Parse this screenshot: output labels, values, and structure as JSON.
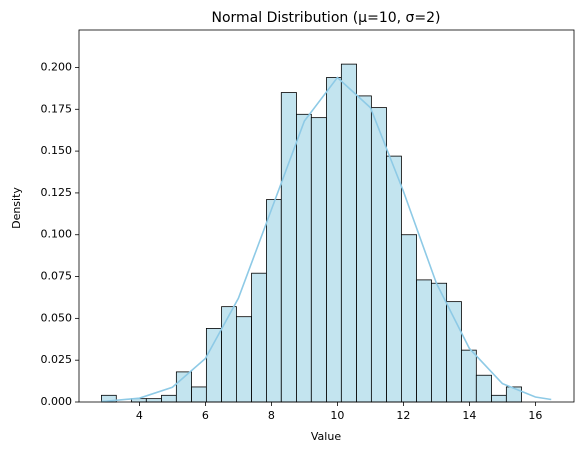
{
  "chart_data": {
    "type": "histogram",
    "title": "Normal Distribution (μ=10, σ=2)",
    "xlabel": "Value",
    "ylabel": "Density",
    "bins": [
      2.85,
      3.3,
      3.76,
      4.21,
      4.67,
      5.12,
      5.58,
      6.03,
      6.49,
      6.94,
      7.4,
      7.85,
      8.3,
      8.76,
      9.21,
      9.67,
      10.12,
      10.58,
      11.03,
      11.49,
      11.94,
      12.4,
      12.85,
      13.31,
      13.76,
      14.21,
      14.67,
      15.12,
      15.58
    ],
    "values": [
      0.004,
      0,
      0.002,
      0.002,
      0.004,
      0.018,
      0.009,
      0.044,
      0.057,
      0.051,
      0.077,
      0.121,
      0.185,
      0.172,
      0.17,
      0.194,
      0.202,
      0.183,
      0.176,
      0.147,
      0.1,
      0.073,
      0.071,
      0.06,
      0.031,
      0.016,
      0.004,
      0.009
    ],
    "color": "#c3e4ef",
    "edgecolor": "#000000",
    "kde": {
      "color": "#8ecae6",
      "x": [
        2.85,
        3,
        4,
        5,
        6,
        7,
        8,
        9,
        10,
        11,
        12,
        13,
        14,
        15,
        16,
        16.48
      ],
      "y": [
        0.0003,
        0.0005,
        0.0023,
        0.0088,
        0.026,
        0.062,
        0.115,
        0.168,
        0.194,
        0.176,
        0.126,
        0.071,
        0.032,
        0.011,
        0.003,
        0.0015
      ]
    },
    "xlim": [
      2.17,
      17.17
    ],
    "ylim": [
      0,
      0.2224
    ],
    "xticks": [
      4,
      6,
      8,
      10,
      12,
      14,
      16
    ],
    "yticks": [
      {
        "value": 0,
        "label": "0.000"
      },
      {
        "value": 0.025,
        "label": "0.025"
      },
      {
        "value": 0.05,
        "label": "0.050"
      },
      {
        "value": 0.075,
        "label": "0.075"
      },
      {
        "value": 0.1,
        "label": "0.100"
      },
      {
        "value": 0.125,
        "label": "0.125"
      },
      {
        "value": 0.15,
        "label": "0.150"
      },
      {
        "value": 0.175,
        "label": "0.175"
      },
      {
        "value": 0.2,
        "label": "0.200"
      }
    ],
    "grid": false
  }
}
